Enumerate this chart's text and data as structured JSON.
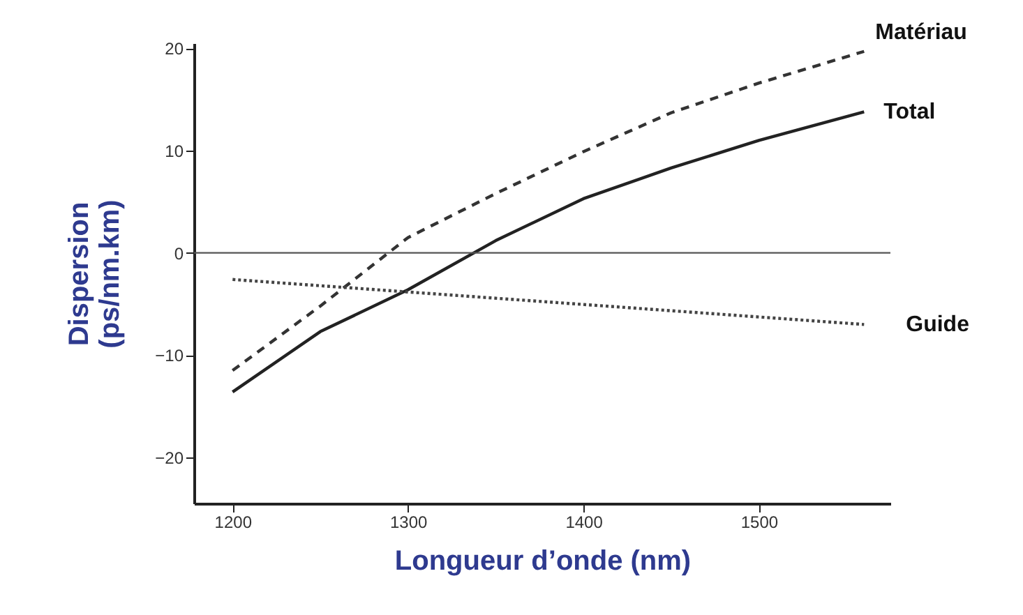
{
  "chart_data": {
    "type": "line",
    "xlabel": "Longueur d’onde (nm)",
    "ylabel": "Dispersion (ps/nm.km)",
    "xlim": [
      1178,
      1575
    ],
    "xticks": [
      1200,
      1300,
      1400,
      1500
    ],
    "ylim": [
      -24.5,
      20.5
    ],
    "yticks": [
      -20,
      -10,
      0,
      10,
      20
    ],
    "grid": false,
    "marker": "none",
    "series": [
      {
        "name": "Matériau",
        "color": "#333333",
        "line_style": "dashed",
        "x": [
          1200,
          1250,
          1300,
          1350,
          1400,
          1450,
          1500,
          1560
        ],
        "values": [
          -11.5,
          -5.2,
          1.5,
          5.8,
          9.9,
          13.7,
          16.6,
          19.7
        ]
      },
      {
        "name": "Total",
        "color": "#222222",
        "line_style": "solid",
        "x": [
          1200,
          1250,
          1300,
          1350,
          1400,
          1450,
          1500,
          1560
        ],
        "values": [
          -13.6,
          -7.7,
          -3.6,
          1.2,
          5.3,
          8.3,
          11.0,
          13.8
        ]
      },
      {
        "name": "Guide",
        "color": "#444444",
        "line_style": "dotted",
        "x": [
          1200,
          1380,
          1560
        ],
        "values": [
          -2.6,
          -4.8,
          -7.0
        ]
      }
    ],
    "ref_lines": [
      {
        "axis": "y",
        "value": 0,
        "color": "#555555"
      }
    ]
  }
}
